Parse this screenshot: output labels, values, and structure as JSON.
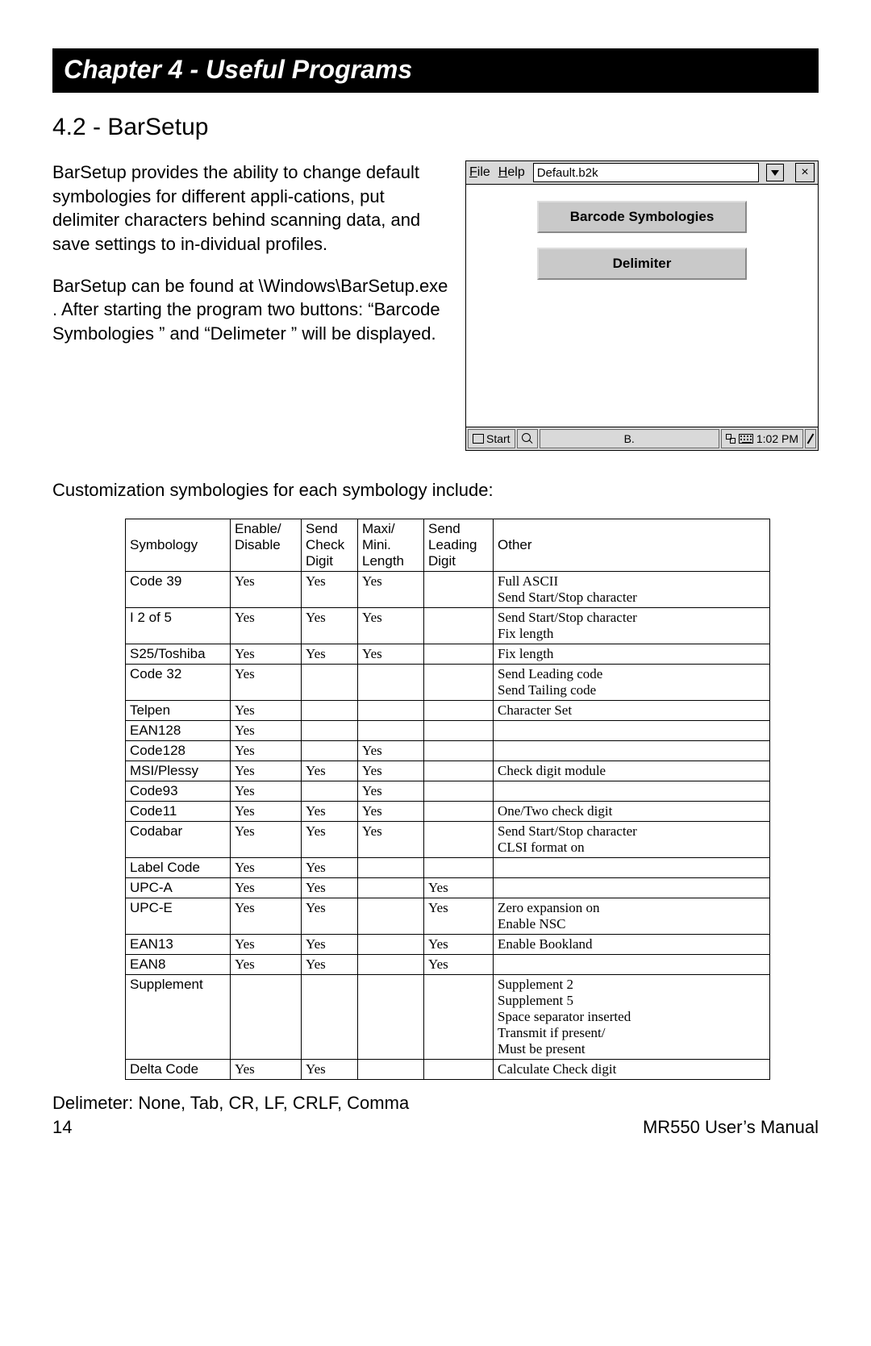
{
  "chapterBand": "Chapter 4 - Useful Programs",
  "sectionTitle": "4.2 - BarSetup",
  "intro": {
    "p1": "BarSetup  provides the ability to change default symbologies for different appli-cations, put delimiter characters behind scanning data, and save settings to in-dividual profiles.",
    "p2": "BarSetup can be found at \\Windows\\BarSetup.exe   . After starting the program two buttons: “Barcode Symbologies   ” and “Delimeter ” will be displayed."
  },
  "shot": {
    "menuFile": "File",
    "menuHelp": "Help",
    "fileBox": "Default.b2k",
    "btn1": "Barcode Symbologies",
    "btn2": "Delimiter",
    "startLabel": "Start",
    "taskApp": "B.",
    "clock": "1:02 PM"
  },
  "subhead": "Customization symbologies for each symbology include:",
  "table": {
    "head": {
      "sym": "Symbology",
      "ed1": "Enable/",
      "ed2": "Disable",
      "sc1": "Send",
      "sc2": "Check",
      "sc3": "Digit",
      "mm1": "Maxi/",
      "mm2": "Mini.",
      "mm3": "Length",
      "sl1": "Send",
      "sl2": "Leading",
      "sl3": "Digit",
      "other": "Other"
    },
    "rows": [
      {
        "sym": "Code 39",
        "ed": "Yes",
        "sc": "Yes",
        "mm": "Yes",
        "sl": "",
        "other": "Full ASCII\nSend Start/Stop character"
      },
      {
        "sym": "I 2 of 5",
        "ed": "Yes",
        "sc": "Yes",
        "mm": "Yes",
        "sl": "",
        "other": "Send Start/Stop character\nFix length"
      },
      {
        "sym": "S25/Toshiba",
        "ed": "Yes",
        "sc": "Yes",
        "mm": "Yes",
        "sl": "",
        "other": "Fix length"
      },
      {
        "sym": "Code 32",
        "ed": "Yes",
        "sc": "",
        "mm": "",
        "sl": "",
        "other": "Send Leading code\nSend Tailing code"
      },
      {
        "sym": "Telpen",
        "ed": "Yes",
        "sc": "",
        "mm": "",
        "sl": "",
        "other": "Character Set"
      },
      {
        "sym": "EAN128",
        "ed": "Yes",
        "sc": "",
        "mm": "",
        "sl": "",
        "other": ""
      },
      {
        "sym": "Code128",
        "ed": "Yes",
        "sc": "",
        "mm": "Yes",
        "sl": "",
        "other": ""
      },
      {
        "sym": "MSI/Plessy",
        "ed": "Yes",
        "sc": "Yes",
        "mm": "Yes",
        "sl": "",
        "other": "Check digit module"
      },
      {
        "sym": "Code93",
        "ed": "Yes",
        "sc": "",
        "mm": "Yes",
        "sl": "",
        "other": ""
      },
      {
        "sym": "Code11",
        "ed": "Yes",
        "sc": "Yes",
        "mm": "Yes",
        "sl": "",
        "other": "One/Two check digit"
      },
      {
        "sym": "Codabar",
        "ed": "Yes",
        "sc": "Yes",
        "mm": "Yes",
        "sl": "",
        "other": "Send Start/Stop character\nCLSI format on"
      },
      {
        "sym": "Label Code",
        "ed": "Yes",
        "sc": "Yes",
        "mm": "",
        "sl": "",
        "other": ""
      },
      {
        "sym": "UPC-A",
        "ed": "Yes",
        "sc": "Yes",
        "mm": "",
        "sl": "Yes",
        "other": ""
      },
      {
        "sym": "UPC-E",
        "ed": "Yes",
        "sc": "Yes",
        "mm": "",
        "sl": "Yes",
        "other": "Zero expansion on\nEnable NSC"
      },
      {
        "sym": "EAN13",
        "ed": "Yes",
        "sc": "Yes",
        "mm": "",
        "sl": "Yes",
        "other": "Enable Bookland"
      },
      {
        "sym": "EAN8",
        "ed": "Yes",
        "sc": "Yes",
        "mm": "",
        "sl": "Yes",
        "other": ""
      },
      {
        "sym": "Supplement",
        "ed": "",
        "sc": "",
        "mm": "",
        "sl": "",
        "other": "Supplement 2\nSupplement 5\nSpace separator inserted\nTransmit if present/\nMust be present"
      },
      {
        "sym": "Delta Code",
        "ed": "Yes",
        "sc": "Yes",
        "mm": "",
        "sl": "",
        "other": "Calculate Check digit"
      }
    ]
  },
  "delimLine": "Delimeter:  None, Tab, CR, LF, CRLF, Comma",
  "footer": {
    "pageNum": "14",
    "manual": "MR550 User’s Manual"
  }
}
